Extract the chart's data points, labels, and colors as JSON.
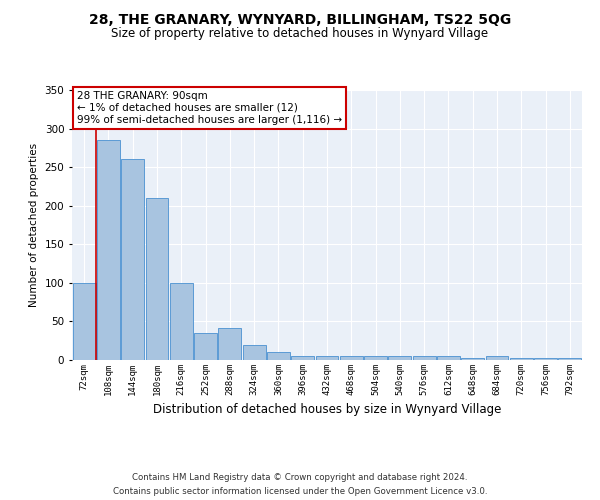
{
  "title": "28, THE GRANARY, WYNYARD, BILLINGHAM, TS22 5QG",
  "subtitle": "Size of property relative to detached houses in Wynyard Village",
  "xlabel": "Distribution of detached houses by size in Wynyard Village",
  "ylabel": "Number of detached properties",
  "footer_line1": "Contains HM Land Registry data © Crown copyright and database right 2024.",
  "footer_line2": "Contains public sector information licensed under the Open Government Licence v3.0.",
  "annotation_line1": "28 THE GRANARY: 90sqm",
  "annotation_line2": "← 1% of detached houses are smaller (12)",
  "annotation_line3": "99% of semi-detached houses are larger (1,116) →",
  "bar_color": "#a8c4e0",
  "bar_edge_color": "#5b9bd5",
  "background_color": "#eaf0f8",
  "annotation_line_color": "#cc0000",
  "categories": [
    72,
    108,
    144,
    180,
    216,
    252,
    288,
    324,
    360,
    396,
    432,
    468,
    504,
    540,
    576,
    612,
    648,
    684,
    720,
    756,
    792
  ],
  "values": [
    100,
    285,
    260,
    210,
    100,
    35,
    42,
    20,
    10,
    5,
    5,
    5,
    5,
    5,
    5,
    5,
    3,
    5,
    3,
    3,
    3
  ],
  "ylim": [
    0,
    350
  ],
  "yticks": [
    0,
    50,
    100,
    150,
    200,
    250,
    300,
    350
  ],
  "figsize": [
    6.0,
    5.0
  ],
  "dpi": 100
}
